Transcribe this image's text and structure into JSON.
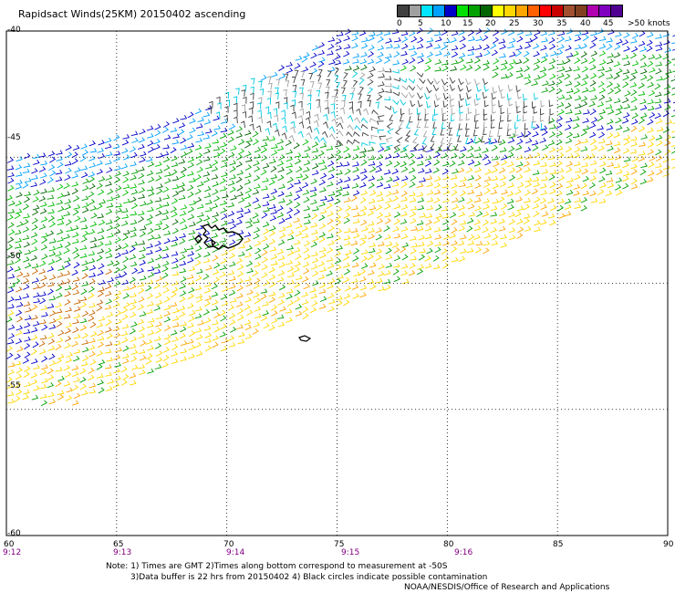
{
  "title": "Rapidsact Winds(25KM) 20150402 ascending",
  "legend": {
    "labels": [
      "0",
      "5",
      "10",
      "15",
      "20",
      "25",
      "30",
      "35",
      "40",
      "45"
    ],
    "last_label": ">50",
    "unit": "knots",
    "colors": [
      "#404040",
      "#a0a0a0",
      "#00e5ff",
      "#00a0ff",
      "#0000c8",
      "#00e000",
      "#00a000",
      "#006400",
      "#ffff00",
      "#ffd700",
      "#ffa500",
      "#ff6000",
      "#ff0000",
      "#c80000",
      "#a05030",
      "#804020",
      "#b000b0",
      "#8000c0",
      "#500090"
    ]
  },
  "map": {
    "lat_labels": [
      "-40",
      "-45",
      "-50",
      "-55",
      "-60"
    ],
    "lon_labels": [
      "60",
      "65",
      "70",
      "75",
      "80",
      "85",
      "90"
    ],
    "time_labels": [
      {
        "time": "9:12",
        "lon": 60
      },
      {
        "time": "9:13",
        "lon": 65
      },
      {
        "time": "9:14",
        "lon": 70
      },
      {
        "time": "9:15",
        "lon": 75
      },
      {
        "time": "9:16",
        "lon": 80
      }
    ],
    "islands": [
      {
        "name": "Kerguelen Islands",
        "lon": 69.3,
        "lat": -49.3
      },
      {
        "name": "Heard Island",
        "lon": 73.4,
        "lat": -53.1
      }
    ]
  },
  "notes": {
    "line1": "Note: 1) Times are GMT 2)Times along bottom correspond to measurement at -50S",
    "line2": "3)Data buffer is 22 hrs from 20150402 4) Black circles indicate possible contamination",
    "line3": "NOAA/NESDIS/Office of Research and Applications"
  }
}
